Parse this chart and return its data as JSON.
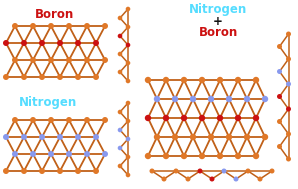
{
  "bg": "#ffffff",
  "P": "#e07828",
  "B": "#cc1111",
  "N": "#8899ee",
  "bond": "#c06018",
  "lbl_B": "Boron",
  "lbl_B_color": "#cc1111",
  "lbl_N": "Nitrogen",
  "lbl_N_color": "#55ddff",
  "lbl_NB_1": "Nitrogen",
  "lbl_NB_2": "+",
  "lbl_NB_3": "Boron",
  "lbl_NB_1_color": "#55ddff",
  "lbl_NB_2_color": "#111111",
  "lbl_NB_3_color": "#cc1111"
}
